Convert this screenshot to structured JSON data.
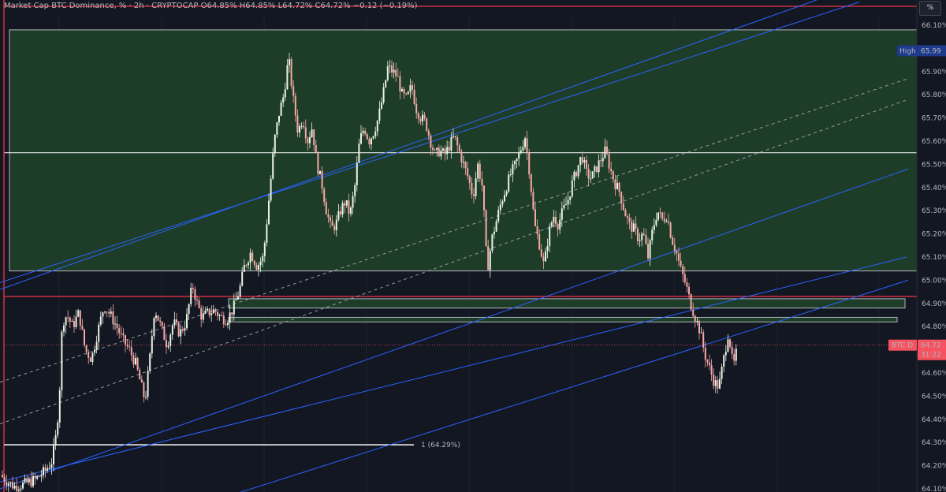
{
  "header": {
    "title": "Market Cap BTC Dominance, % · 2h · CRYPTOCAP  O64.85%  H64.85%  L64.72%  C64.72%  −0.12 (−0.19%)"
  },
  "scale_button": {
    "label": "%"
  },
  "colors": {
    "background": "#131722",
    "zone_fill": "#1e3d28",
    "zone_border": "#b2b5be",
    "candle_up": "#e8f3e4",
    "candle_down": "#f7a8a8",
    "channel": "#2962ff",
    "midline": "#9598a1",
    "red_line": "#f23645",
    "level_line": "#e6e6e6",
    "price_tag": "#f7525f",
    "high_tag": "#1e3a8a"
  },
  "annotations": {
    "fib_label": "1 (64.29%)",
    "high_label": "High",
    "high_value": "65.99",
    "symbol_tag": "BTC.D",
    "last_value": "64.72",
    "countdown": "31:22"
  },
  "chart_data": {
    "type": "candlestick",
    "title": "Market Cap BTC Dominance",
    "ylim": [
      64.1,
      66.15
    ],
    "yticks": [
      "66.10",
      "66.00",
      "65.90",
      "65.80",
      "65.70",
      "65.60",
      "65.50",
      "65.40",
      "65.30",
      "65.20",
      "65.10",
      "65.00",
      "64.90",
      "64.80",
      "64.70",
      "64.60",
      "64.50",
      "64.40",
      "64.30",
      "64.20",
      "64.10"
    ],
    "close_path": [
      [
        0,
        64.16
      ],
      [
        10,
        64.13
      ],
      [
        18,
        64.11
      ],
      [
        30,
        64.12
      ],
      [
        45,
        64.14
      ],
      [
        58,
        64.18
      ],
      [
        66,
        64.22
      ],
      [
        72,
        64.35
      ],
      [
        76,
        64.55
      ],
      [
        79,
        64.82
      ],
      [
        85,
        64.85
      ],
      [
        92,
        64.8
      ],
      [
        100,
        64.86
      ],
      [
        108,
        64.7
      ],
      [
        116,
        64.66
      ],
      [
        124,
        64.78
      ],
      [
        132,
        64.89
      ],
      [
        140,
        64.85
      ],
      [
        148,
        64.8
      ],
      [
        156,
        64.74
      ],
      [
        164,
        64.7
      ],
      [
        172,
        64.64
      ],
      [
        178,
        64.56
      ],
      [
        184,
        64.48
      ],
      [
        190,
        64.66
      ],
      [
        196,
        64.88
      ],
      [
        204,
        64.8
      ],
      [
        212,
        64.72
      ],
      [
        220,
        64.82
      ],
      [
        228,
        64.77
      ],
      [
        236,
        64.82
      ],
      [
        244,
        64.98
      ],
      [
        250,
        64.9
      ],
      [
        256,
        64.84
      ],
      [
        264,
        64.86
      ],
      [
        272,
        64.87
      ],
      [
        280,
        64.84
      ],
      [
        288,
        64.83
      ],
      [
        296,
        64.88
      ],
      [
        304,
        64.96
      ],
      [
        310,
        65.06
      ],
      [
        318,
        65.12
      ],
      [
        326,
        65.06
      ],
      [
        334,
        65.1
      ],
      [
        342,
        65.38
      ],
      [
        348,
        65.6
      ],
      [
        354,
        65.72
      ],
      [
        360,
        65.8
      ],
      [
        366,
        65.96
      ],
      [
        372,
        65.78
      ],
      [
        378,
        65.64
      ],
      [
        384,
        65.7
      ],
      [
        390,
        65.6
      ],
      [
        396,
        65.66
      ],
      [
        402,
        65.5
      ],
      [
        408,
        65.42
      ],
      [
        414,
        65.3
      ],
      [
        420,
        65.22
      ],
      [
        426,
        65.24
      ],
      [
        432,
        65.3
      ],
      [
        438,
        65.34
      ],
      [
        444,
        65.28
      ],
      [
        450,
        65.4
      ],
      [
        456,
        65.6
      ],
      [
        462,
        65.66
      ],
      [
        468,
        65.6
      ],
      [
        474,
        65.64
      ],
      [
        480,
        65.7
      ],
      [
        486,
        65.8
      ],
      [
        492,
        65.92
      ],
      [
        498,
        65.9
      ],
      [
        504,
        65.88
      ],
      [
        510,
        65.8
      ],
      [
        516,
        65.78
      ],
      [
        522,
        65.84
      ],
      [
        528,
        65.74
      ],
      [
        534,
        65.7
      ],
      [
        540,
        65.68
      ],
      [
        546,
        65.6
      ],
      [
        552,
        65.54
      ],
      [
        558,
        65.56
      ],
      [
        564,
        65.54
      ],
      [
        570,
        65.58
      ],
      [
        576,
        65.62
      ],
      [
        582,
        65.56
      ],
      [
        588,
        65.5
      ],
      [
        594,
        65.44
      ],
      [
        600,
        65.36
      ],
      [
        606,
        65.5
      ],
      [
        612,
        65.4
      ],
      [
        618,
        65.04
      ],
      [
        624,
        65.18
      ],
      [
        630,
        65.26
      ],
      [
        636,
        65.34
      ],
      [
        642,
        65.4
      ],
      [
        648,
        65.46
      ],
      [
        654,
        65.5
      ],
      [
        660,
        65.56
      ],
      [
        666,
        65.62
      ],
      [
        672,
        65.46
      ],
      [
        678,
        65.24
      ],
      [
        684,
        65.16
      ],
      [
        690,
        65.06
      ],
      [
        696,
        65.2
      ],
      [
        702,
        65.28
      ],
      [
        708,
        65.24
      ],
      [
        714,
        65.3
      ],
      [
        720,
        65.34
      ],
      [
        726,
        65.42
      ],
      [
        732,
        65.48
      ],
      [
        738,
        65.54
      ],
      [
        744,
        65.46
      ],
      [
        750,
        65.44
      ],
      [
        756,
        65.48
      ],
      [
        762,
        65.52
      ],
      [
        768,
        65.56
      ],
      [
        774,
        65.48
      ],
      [
        780,
        65.42
      ],
      [
        786,
        65.38
      ],
      [
        792,
        65.3
      ],
      [
        798,
        65.24
      ],
      [
        804,
        65.22
      ],
      [
        810,
        65.18
      ],
      [
        816,
        65.2
      ],
      [
        822,
        65.1
      ],
      [
        828,
        65.22
      ],
      [
        834,
        65.3
      ],
      [
        840,
        65.26
      ],
      [
        846,
        65.28
      ],
      [
        852,
        65.18
      ],
      [
        858,
        65.12
      ],
      [
        864,
        65.04
      ],
      [
        870,
        64.98
      ],
      [
        876,
        64.9
      ],
      [
        882,
        64.84
      ],
      [
        888,
        64.78
      ],
      [
        894,
        64.68
      ],
      [
        900,
        64.62
      ],
      [
        906,
        64.56
      ],
      [
        912,
        64.54
      ],
      [
        918,
        64.66
      ],
      [
        924,
        64.78
      ],
      [
        930,
        64.62
      ],
      [
        936,
        64.72
      ]
    ],
    "zone": {
      "top": 66.08,
      "bottom": 65.04
    },
    "levels": {
      "mid_line": 65.55,
      "red_top": 66.15,
      "red_mid": 64.93,
      "fib_one": 64.29
    },
    "small_zones": [
      {
        "x1": 290,
        "x2": 1148,
        "top": 64.92,
        "bottom": 64.88
      },
      {
        "x1": 290,
        "x2": 1138,
        "top": 64.84,
        "bottom": 64.82
      }
    ],
    "channel_lines": [
      {
        "x1": 0,
        "y1": 64.99,
        "x2": 1090,
        "y2": 66.2
      },
      {
        "x1": 0,
        "y1": 64.96,
        "x2": 1070,
        "y2": 66.25
      },
      {
        "x1": 0,
        "y1": 64.13,
        "x2": 1150,
        "y2": 65.1
      },
      {
        "x1": 0,
        "y1": 64.1,
        "x2": 1152,
        "y2": 65.48
      },
      {
        "x1": 300,
        "y1": 64.08,
        "x2": 1152,
        "y2": 65.0
      }
    ],
    "dashed_lines": [
      {
        "x1": 0,
        "y1": 64.56,
        "x2": 1152,
        "y2": 65.87
      },
      {
        "x1": 0,
        "y1": 64.38,
        "x2": 1152,
        "y2": 65.78
      }
    ]
  }
}
